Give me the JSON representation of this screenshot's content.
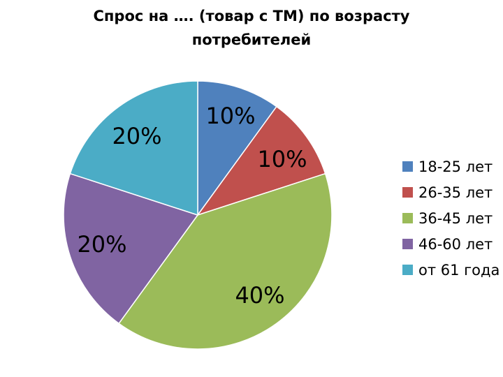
{
  "chart_data": {
    "type": "pie",
    "title_lines": [
      "Спрос на …. (товар с ТМ) по возрасту",
      "потребителей"
    ],
    "categories": [
      "18-25 лет",
      "26-35 лет",
      "36-45 лет",
      "46-60 лет",
      "от 61 года"
    ],
    "values": [
      10,
      10,
      40,
      20,
      20
    ],
    "data_labels": [
      "10%",
      "10%",
      "40%",
      "20%",
      "20%"
    ],
    "colors": [
      "#4F81BD",
      "#C0504D",
      "#9BBB59",
      "#8064A2",
      "#4BACC6"
    ],
    "legend_position": "right"
  }
}
